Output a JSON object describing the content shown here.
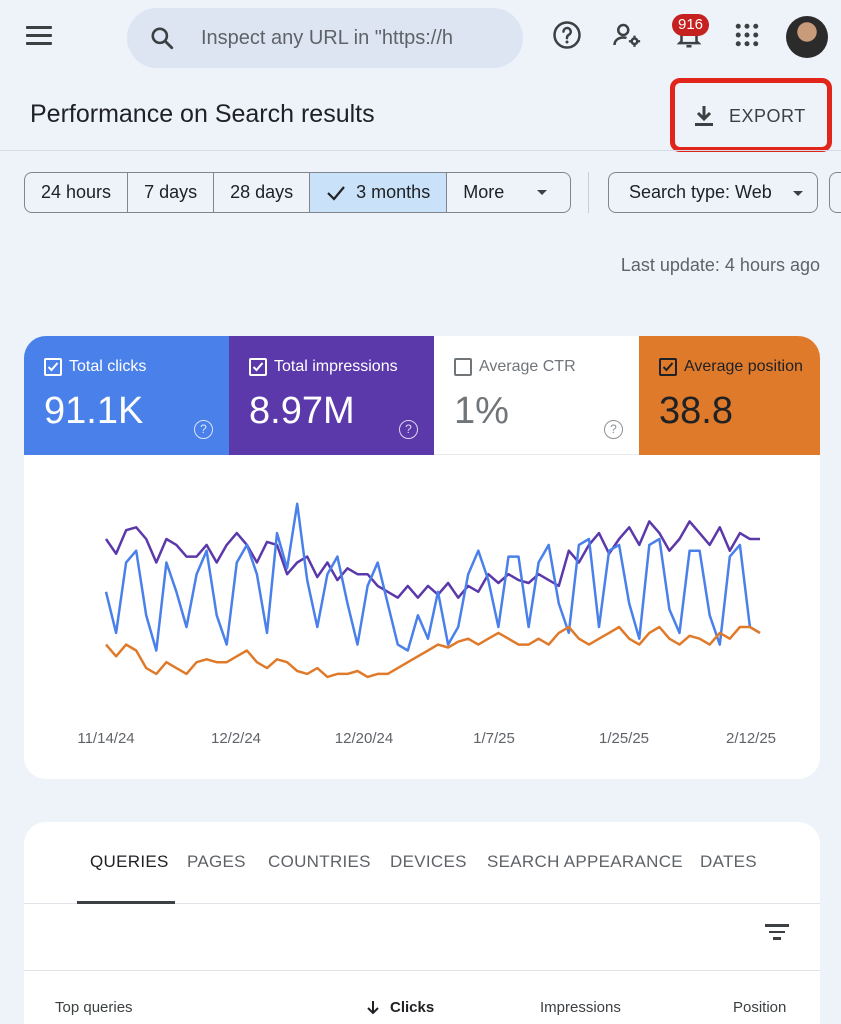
{
  "search": {
    "placeholder": "Inspect any URL in \"https://h"
  },
  "notifications": {
    "count": "916"
  },
  "header": {
    "title": "Performance on Search results",
    "export_label": "EXPORT"
  },
  "date_range": {
    "options": [
      "24 hours",
      "7 days",
      "28 days",
      "3 months",
      "More"
    ],
    "selected": "3 months"
  },
  "search_type": {
    "label": "Search type: Web"
  },
  "last_update": "Last update: 4 hours ago",
  "metrics": [
    {
      "label": "Total clicks",
      "value": "91.1K",
      "checked": true,
      "color": "#4a80ea"
    },
    {
      "label": "Total impressions",
      "value": "8.97M",
      "checked": true,
      "color": "#5b39aa"
    },
    {
      "label": "Average CTR",
      "value": "1%",
      "checked": false,
      "color": "#ffffff"
    },
    {
      "label": "Average position",
      "value": "38.8",
      "checked": true,
      "color": "#e07a2b"
    }
  ],
  "chart_data": {
    "type": "line",
    "x_ticks": [
      "11/14/24",
      "12/2/24",
      "12/20/24",
      "1/7/25",
      "1/25/25",
      "2/12/25"
    ],
    "series": [
      {
        "name": "Total impressions",
        "color": "#5b39aa",
        "values": [
          60,
          55,
          63,
          64,
          60,
          52,
          60,
          58,
          54,
          54,
          58,
          52,
          58,
          62,
          58,
          52,
          59,
          58,
          48,
          52,
          54,
          47,
          52,
          46,
          50,
          48,
          48,
          44,
          42,
          40,
          44,
          40,
          44,
          41,
          45,
          40,
          44,
          42,
          48,
          45,
          48,
          46,
          45,
          48,
          46,
          44,
          56,
          52,
          58,
          62,
          55,
          60,
          64,
          58,
          66,
          62,
          56,
          60,
          66,
          62,
          58,
          64,
          56,
          62,
          60,
          60
        ]
      },
      {
        "name": "Total clicks",
        "color": "#4a80ea",
        "values": [
          42,
          28,
          52,
          56,
          34,
          22,
          52,
          42,
          30,
          48,
          56,
          34,
          24,
          52,
          58,
          48,
          28,
          62,
          50,
          72,
          46,
          30,
          48,
          54,
          38,
          24,
          44,
          52,
          38,
          24,
          22,
          34,
          26,
          42,
          24,
          30,
          48,
          56,
          46,
          30,
          54,
          54,
          30,
          52,
          58,
          38,
          28,
          58,
          60,
          30,
          56,
          58,
          38,
          26,
          58,
          60,
          36,
          28,
          56,
          56,
          34,
          24,
          54,
          58,
          30,
          28
        ]
      },
      {
        "name": "Average position",
        "color": "#e07a2b",
        "values": [
          24,
          20,
          24,
          22,
          16,
          14,
          18,
          16,
          14,
          18,
          19,
          18,
          18,
          20,
          22,
          18,
          16,
          19,
          18,
          15,
          14,
          16,
          13,
          14,
          14,
          15,
          13,
          14,
          14,
          16,
          18,
          20,
          22,
          24,
          23,
          25,
          26,
          24,
          26,
          28,
          26,
          24,
          24,
          26,
          24,
          28,
          30,
          26,
          24,
          26,
          28,
          30,
          26,
          24,
          28,
          30,
          26,
          24,
          27,
          26,
          24,
          28,
          26,
          30,
          30,
          28
        ]
      }
    ]
  },
  "tabs": [
    "QUERIES",
    "PAGES",
    "COUNTRIES",
    "DEVICES",
    "SEARCH APPEARANCE",
    "DATES"
  ],
  "table": {
    "headers": [
      "Top queries",
      "Clicks",
      "Impressions",
      "Position"
    ]
  }
}
